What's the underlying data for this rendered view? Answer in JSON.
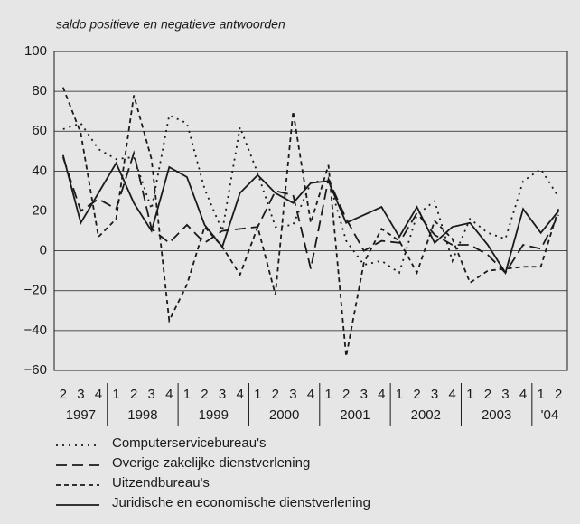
{
  "chart_data": {
    "type": "line",
    "subtitle": "saldo positieve en negatieve antwoorden",
    "categories": [
      "2",
      "3",
      "4",
      "1",
      "2",
      "3",
      "4",
      "1",
      "2",
      "3",
      "4",
      "1",
      "2",
      "3",
      "4",
      "1",
      "2",
      "3",
      "4",
      "1",
      "2",
      "3",
      "4",
      "1",
      "2",
      "3",
      "4",
      "1",
      "2"
    ],
    "years": [
      "1997",
      "1998",
      "1999",
      "2000",
      "2001",
      "2002",
      "2003",
      "'04"
    ],
    "ylim": [
      -60,
      100
    ],
    "yticks": [
      {
        "value": -60,
        "label": "−60"
      },
      {
        "value": -40,
        "label": "−40"
      },
      {
        "value": -20,
        "label": "−20"
      },
      0,
      20,
      40,
      60,
      80,
      100
    ],
    "grid": true,
    "series": [
      {
        "name": "Computerservicebureau's",
        "color": "#1a1a1a",
        "dash": "2 5",
        "values": [
          61,
          64,
          51,
          46,
          47,
          21,
          68,
          64,
          31,
          10,
          62,
          39,
          12,
          13,
          34,
          36,
          5,
          -7,
          -5,
          -11,
          18,
          25,
          -5,
          16,
          9,
          6,
          35,
          41,
          27
        ]
      },
      {
        "name": "Overige zakelijke dienstverlening",
        "color": "#1a1a1a",
        "dash": "12 6",
        "values": [
          47,
          20,
          26,
          21,
          49,
          11,
          4,
          13,
          4,
          10,
          11,
          12,
          30,
          28,
          -9,
          36,
          16,
          0,
          5,
          4,
          19,
          8,
          3,
          3,
          -2,
          -11,
          3,
          1,
          18
        ]
      },
      {
        "name": "Uitzendbureau's",
        "color": "#1a1a1a",
        "dash": "5 4",
        "values": [
          82,
          59,
          7,
          16,
          78,
          46,
          -35,
          -17,
          12,
          2,
          -12,
          12,
          -22,
          70,
          14,
          43,
          -53,
          -6,
          11,
          5,
          -11,
          15,
          6,
          -16,
          -10,
          -9,
          -8,
          -8,
          21
        ]
      },
      {
        "name": "Juridische en economische dienstverlening",
        "color": "#1a1a1a",
        "dash": "none",
        "values": [
          48,
          14,
          29,
          44,
          24,
          10,
          42,
          37,
          13,
          2,
          29,
          38,
          29,
          24,
          34,
          35,
          14,
          18,
          22,
          7,
          22,
          4,
          12,
          14,
          3,
          -11,
          21,
          9,
          20
        ]
      }
    ]
  }
}
